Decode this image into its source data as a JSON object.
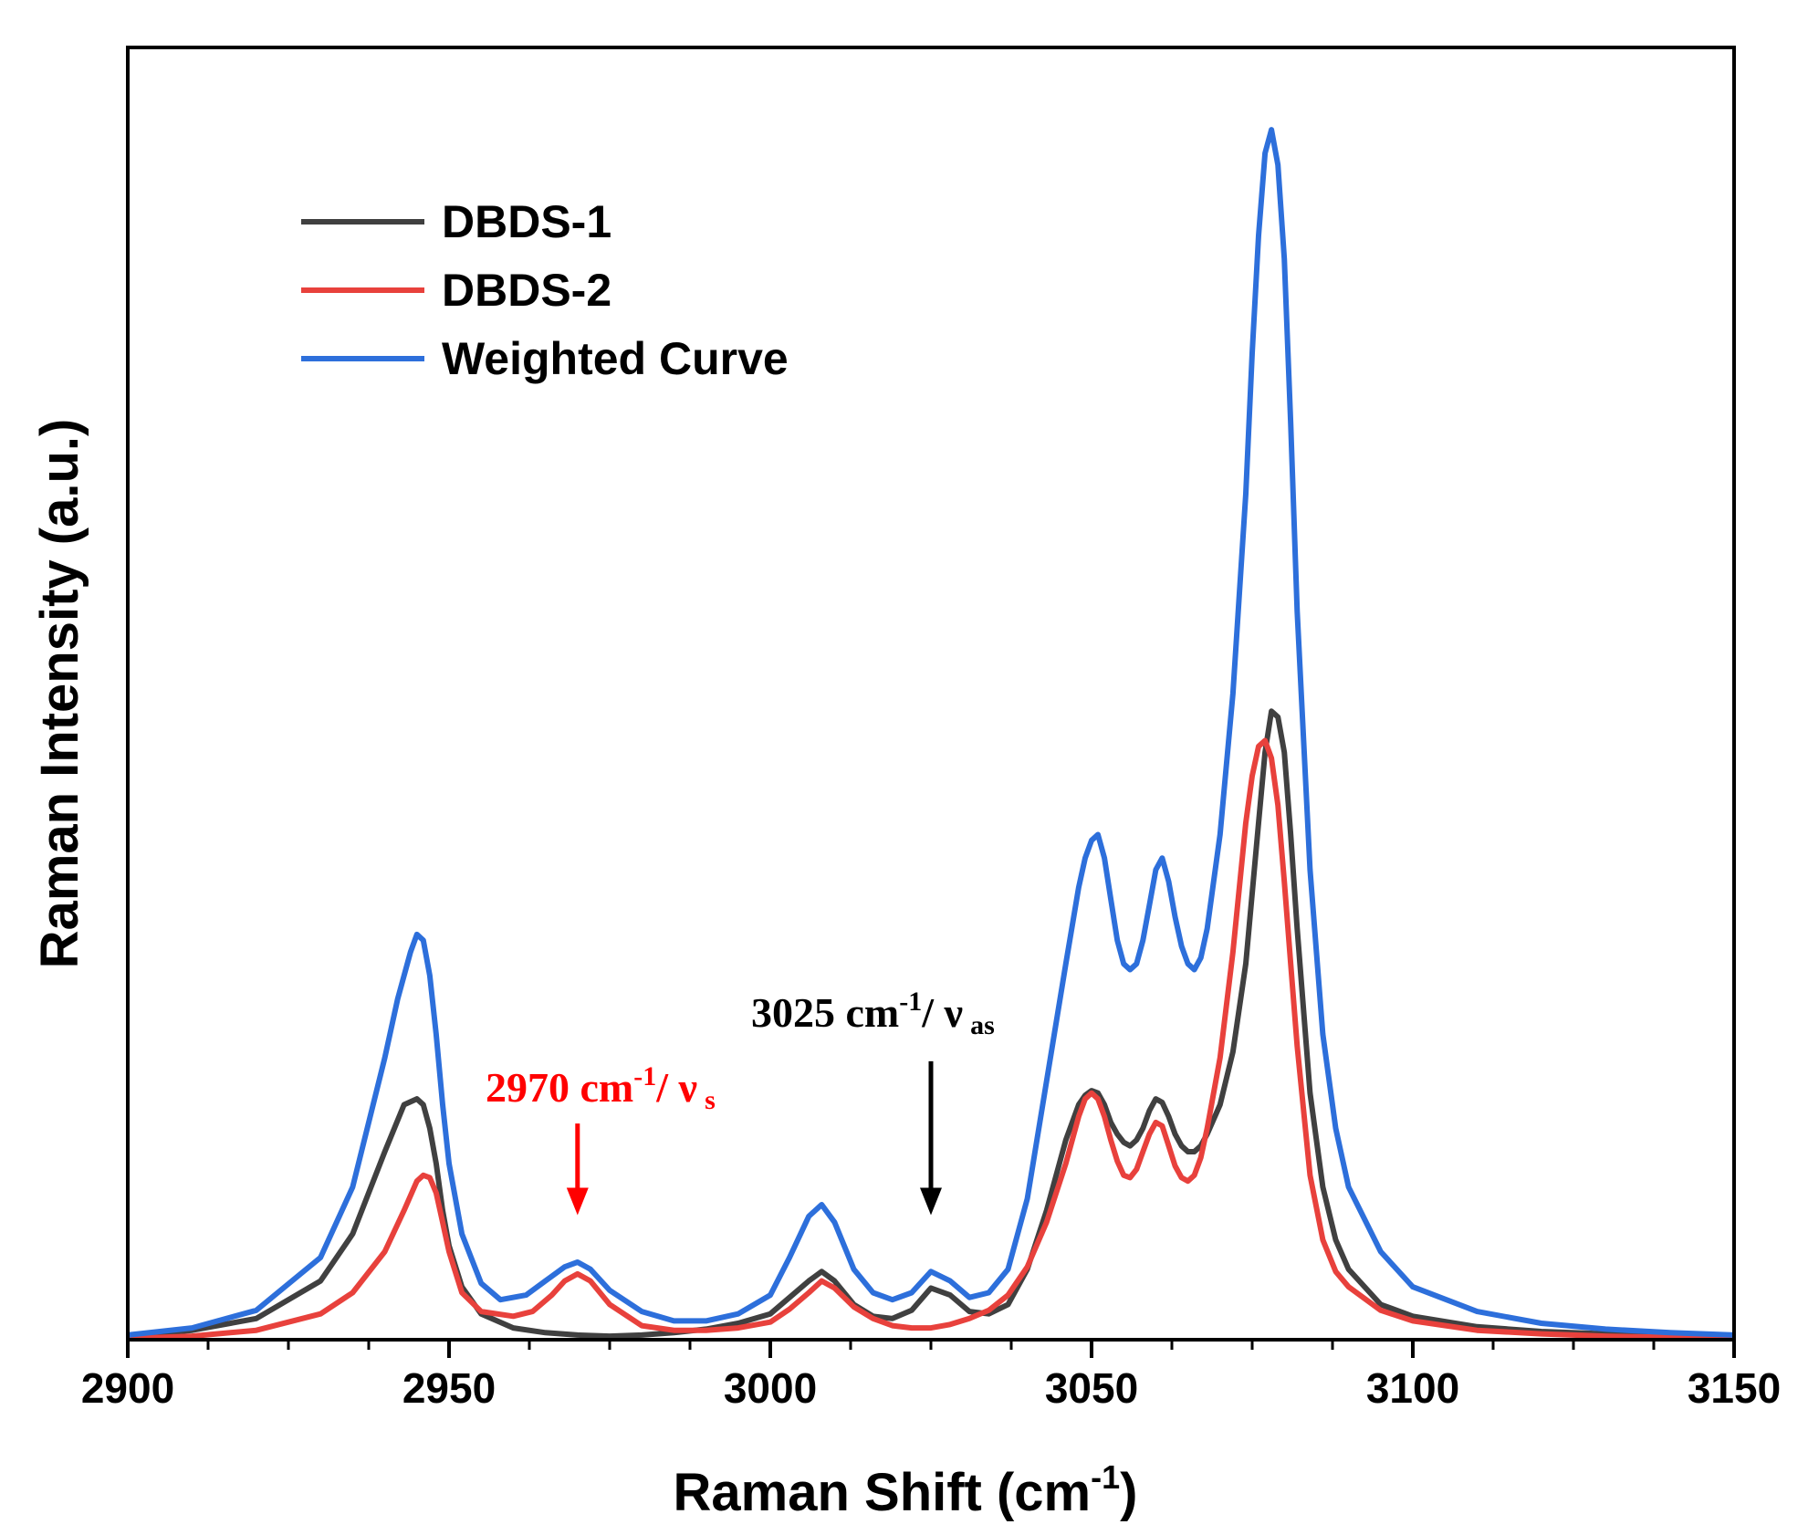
{
  "chart_data": {
    "type": "line",
    "title": "",
    "xlabel": "Raman Shift (cm",
    "xlabel_sup": "-1",
    "xlabel_end": ")",
    "ylabel": "Raman Intensity (a.u.)",
    "xlim": [
      2900,
      3150
    ],
    "ylim": [
      0,
      1.1
    ],
    "x_ticks": [
      2900,
      2950,
      3000,
      3050,
      3100,
      3150
    ],
    "x_tick_labels": [
      "2900",
      "2950",
      "3000",
      "3050",
      "3100",
      "3150"
    ],
    "y_ticks_visible": false,
    "legend_position": "top-left",
    "series": [
      {
        "name": "DBDS-1",
        "color": "#404040",
        "x": [
          2900,
          2910,
          2920,
          2930,
          2935,
          2940,
          2943,
          2945,
          2946,
          2947,
          2948,
          2949,
          2950,
          2952,
          2955,
          2960,
          2965,
          2970,
          2975,
          2980,
          2985,
          2990,
          2995,
          3000,
          3003,
          3006,
          3008,
          3010,
          3013,
          3016,
          3019,
          3022,
          3025,
          3028,
          3031,
          3034,
          3037,
          3040,
          3043,
          3046,
          3048,
          3049,
          3050,
          3051,
          3052,
          3053,
          3054,
          3055,
          3056,
          3057,
          3058,
          3059,
          3060,
          3061,
          3062,
          3063,
          3064,
          3065,
          3066,
          3067,
          3068,
          3070,
          3072,
          3074,
          3075,
          3076,
          3077,
          3078,
          3079,
          3080,
          3081,
          3082,
          3084,
          3086,
          3088,
          3090,
          3095,
          3100,
          3110,
          3120,
          3130,
          3140,
          3150
        ],
        "values": [
          0.003,
          0.008,
          0.018,
          0.05,
          0.09,
          0.16,
          0.2,
          0.205,
          0.2,
          0.18,
          0.15,
          0.11,
          0.08,
          0.045,
          0.022,
          0.01,
          0.006,
          0.004,
          0.003,
          0.004,
          0.006,
          0.009,
          0.014,
          0.022,
          0.036,
          0.05,
          0.058,
          0.05,
          0.03,
          0.02,
          0.018,
          0.025,
          0.044,
          0.038,
          0.024,
          0.022,
          0.03,
          0.06,
          0.11,
          0.17,
          0.2,
          0.208,
          0.212,
          0.21,
          0.2,
          0.185,
          0.175,
          0.168,
          0.165,
          0.17,
          0.18,
          0.195,
          0.205,
          0.202,
          0.19,
          0.175,
          0.165,
          0.16,
          0.16,
          0.165,
          0.175,
          0.2,
          0.245,
          0.32,
          0.38,
          0.44,
          0.5,
          0.535,
          0.53,
          0.5,
          0.43,
          0.35,
          0.21,
          0.13,
          0.085,
          0.06,
          0.03,
          0.02,
          0.011,
          0.007,
          0.005,
          0.004,
          0.003
        ]
      },
      {
        "name": "DBDS-2",
        "color": "#e8413c",
        "x": [
          2900,
          2910,
          2920,
          2930,
          2935,
          2940,
          2943,
          2945,
          2946,
          2947,
          2948,
          2949,
          2950,
          2952,
          2955,
          2960,
          2963,
          2966,
          2968,
          2970,
          2972,
          2975,
          2980,
          2985,
          2990,
          2995,
          3000,
          3003,
          3006,
          3008,
          3010,
          3013,
          3016,
          3019,
          3022,
          3025,
          3028,
          3031,
          3034,
          3037,
          3040,
          3043,
          3046,
          3048,
          3049,
          3050,
          3051,
          3052,
          3053,
          3054,
          3055,
          3056,
          3057,
          3058,
          3059,
          3060,
          3061,
          3062,
          3063,
          3064,
          3065,
          3066,
          3067,
          3068,
          3070,
          3072,
          3074,
          3075,
          3076,
          3077,
          3078,
          3079,
          3080,
          3081,
          3082,
          3084,
          3086,
          3088,
          3090,
          3095,
          3100,
          3110,
          3120,
          3130,
          3140,
          3150
        ],
        "values": [
          0.001,
          0.003,
          0.008,
          0.022,
          0.04,
          0.075,
          0.11,
          0.135,
          0.14,
          0.138,
          0.125,
          0.1,
          0.075,
          0.04,
          0.024,
          0.02,
          0.024,
          0.038,
          0.05,
          0.056,
          0.05,
          0.03,
          0.012,
          0.008,
          0.008,
          0.01,
          0.015,
          0.026,
          0.04,
          0.05,
          0.044,
          0.028,
          0.018,
          0.012,
          0.01,
          0.01,
          0.013,
          0.018,
          0.025,
          0.038,
          0.062,
          0.1,
          0.15,
          0.19,
          0.205,
          0.21,
          0.205,
          0.19,
          0.17,
          0.152,
          0.14,
          0.138,
          0.145,
          0.16,
          0.175,
          0.185,
          0.182,
          0.165,
          0.148,
          0.138,
          0.135,
          0.14,
          0.155,
          0.18,
          0.24,
          0.33,
          0.44,
          0.48,
          0.505,
          0.51,
          0.495,
          0.455,
          0.39,
          0.32,
          0.25,
          0.14,
          0.085,
          0.058,
          0.045,
          0.025,
          0.016,
          0.008,
          0.005,
          0.003,
          0.002,
          0.001
        ]
      },
      {
        "name": "Weighted Curve",
        "color": "#2d6fdb",
        "x": [
          2900,
          2910,
          2920,
          2930,
          2935,
          2940,
          2942,
          2944,
          2945,
          2946,
          2947,
          2948,
          2949,
          2950,
          2952,
          2955,
          2958,
          2962,
          2965,
          2968,
          2970,
          2972,
          2975,
          2980,
          2985,
          2990,
          2995,
          3000,
          3003,
          3006,
          3008,
          3010,
          3013,
          3016,
          3019,
          3022,
          3025,
          3028,
          3031,
          3034,
          3037,
          3040,
          3043,
          3046,
          3048,
          3049,
          3050,
          3051,
          3052,
          3053,
          3054,
          3055,
          3056,
          3057,
          3058,
          3059,
          3060,
          3061,
          3062,
          3063,
          3064,
          3065,
          3066,
          3067,
          3068,
          3070,
          3072,
          3074,
          3075,
          3076,
          3077,
          3078,
          3079,
          3080,
          3081,
          3082,
          3084,
          3086,
          3088,
          3090,
          3095,
          3100,
          3110,
          3120,
          3130,
          3140,
          3150
        ],
        "values": [
          0.004,
          0.01,
          0.025,
          0.07,
          0.13,
          0.24,
          0.29,
          0.33,
          0.345,
          0.34,
          0.31,
          0.26,
          0.2,
          0.15,
          0.09,
          0.048,
          0.034,
          0.038,
          0.05,
          0.062,
          0.066,
          0.06,
          0.042,
          0.024,
          0.016,
          0.016,
          0.022,
          0.038,
          0.07,
          0.105,
          0.115,
          0.1,
          0.06,
          0.04,
          0.034,
          0.04,
          0.058,
          0.05,
          0.036,
          0.04,
          0.06,
          0.12,
          0.22,
          0.32,
          0.385,
          0.41,
          0.425,
          0.43,
          0.41,
          0.375,
          0.34,
          0.32,
          0.315,
          0.32,
          0.34,
          0.37,
          0.4,
          0.41,
          0.39,
          0.36,
          0.335,
          0.32,
          0.315,
          0.325,
          0.35,
          0.43,
          0.55,
          0.72,
          0.84,
          0.94,
          1.01,
          1.03,
          1.0,
          0.92,
          0.78,
          0.62,
          0.4,
          0.26,
          0.18,
          0.13,
          0.075,
          0.045,
          0.024,
          0.014,
          0.009,
          0.006,
          0.004
        ]
      }
    ],
    "annotations": [
      {
        "text": "2970 cm",
        "sup": "-1",
        "tail": "/ ν",
        "sub": "s",
        "arrow_x": 2970,
        "arrow_from": 0.184,
        "arrow_to": 0.106,
        "color": "#ff0000"
      },
      {
        "text": "3025 cm",
        "sup": "-1",
        "tail": "/ ν",
        "sub": "as",
        "arrow_x": 3025,
        "arrow_from": 0.237,
        "arrow_to": 0.106,
        "color": "#000000"
      }
    ]
  }
}
